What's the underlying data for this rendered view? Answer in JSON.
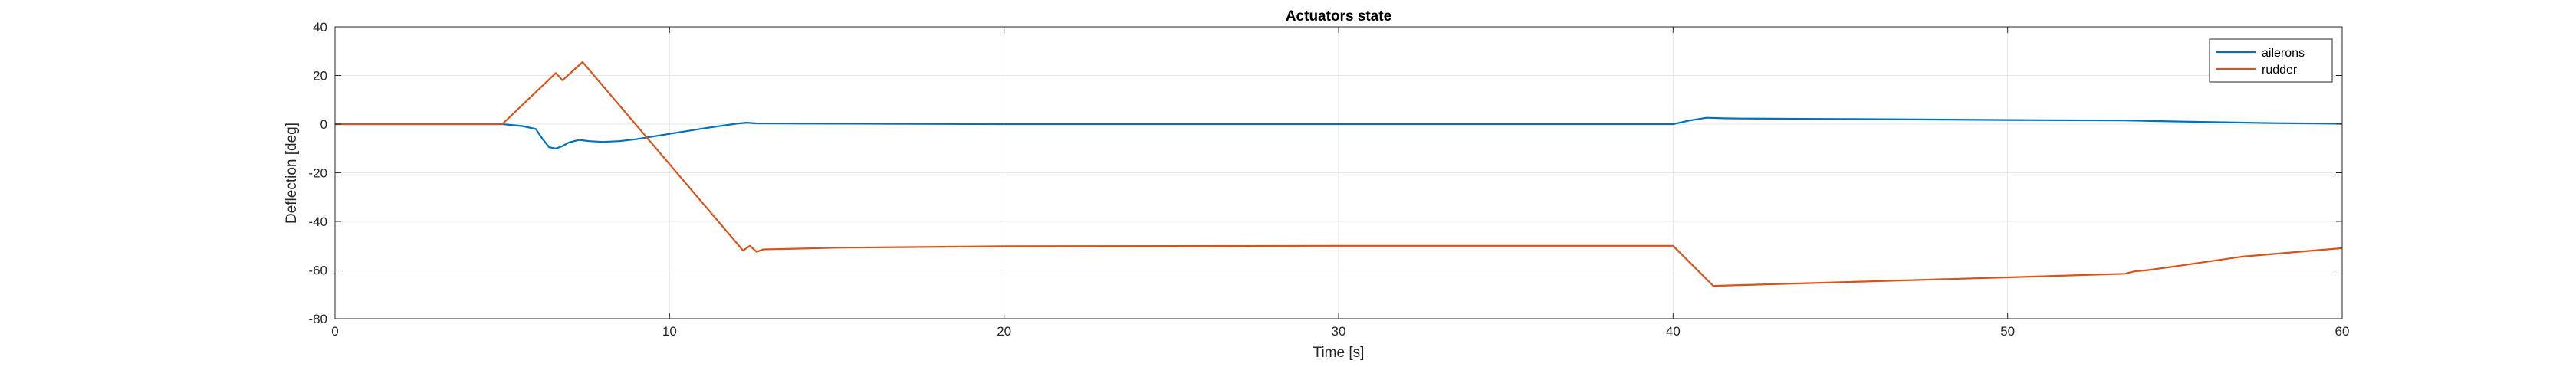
{
  "chart_data": {
    "type": "line",
    "title": "Actuators state",
    "xlabel": "Time [s]",
    "ylabel": "Deflection [deg]",
    "xlim": [
      0,
      60
    ],
    "ylim": [
      -80,
      40
    ],
    "xticks": [
      0,
      10,
      20,
      30,
      40,
      50,
      60
    ],
    "yticks": [
      -80,
      -60,
      -40,
      -20,
      0,
      20,
      40
    ],
    "grid": true,
    "legend_position": "top-right",
    "series": [
      {
        "name": "ailerons",
        "color": "#0072BD",
        "points": [
          [
            0,
            0
          ],
          [
            5,
            0
          ],
          [
            5.6,
            -0.8
          ],
          [
            6,
            -2
          ],
          [
            6.2,
            -6
          ],
          [
            6.4,
            -9.5
          ],
          [
            6.6,
            -10
          ],
          [
            6.8,
            -9
          ],
          [
            7,
            -7.5
          ],
          [
            7.3,
            -6.5
          ],
          [
            7.6,
            -7
          ],
          [
            8,
            -7.3
          ],
          [
            8.5,
            -7
          ],
          [
            9,
            -6.2
          ],
          [
            10,
            -4
          ],
          [
            11,
            -1.8
          ],
          [
            12,
            0.2
          ],
          [
            12.3,
            0.6
          ],
          [
            12.6,
            0.3
          ],
          [
            15,
            0.2
          ],
          [
            20,
            0
          ],
          [
            30,
            0
          ],
          [
            40,
            0
          ],
          [
            40.5,
            1.5
          ],
          [
            41,
            2.6
          ],
          [
            41.5,
            2.4
          ],
          [
            42,
            2.3
          ],
          [
            45,
            2.1
          ],
          [
            50,
            1.7
          ],
          [
            53.5,
            1.5
          ],
          [
            55,
            1.1
          ],
          [
            58,
            0.4
          ],
          [
            60,
            0.2
          ]
        ]
      },
      {
        "name": "rudder",
        "color": "#D95319",
        "points": [
          [
            0,
            0
          ],
          [
            5,
            0
          ],
          [
            6.6,
            21
          ],
          [
            6.8,
            18
          ],
          [
            7.4,
            25.5
          ],
          [
            12.2,
            -52
          ],
          [
            12.4,
            -50
          ],
          [
            12.6,
            -52.5
          ],
          [
            12.8,
            -51.5
          ],
          [
            13.5,
            -51.3
          ],
          [
            15,
            -50.8
          ],
          [
            20,
            -50.2
          ],
          [
            30,
            -50
          ],
          [
            40,
            -50
          ],
          [
            41.2,
            -66.5
          ],
          [
            45,
            -65
          ],
          [
            50,
            -63
          ],
          [
            53.5,
            -61.5
          ],
          [
            53.8,
            -60.5
          ],
          [
            54.2,
            -60
          ],
          [
            55,
            -58.5
          ],
          [
            57,
            -54.5
          ],
          [
            60,
            -51
          ]
        ]
      }
    ]
  }
}
